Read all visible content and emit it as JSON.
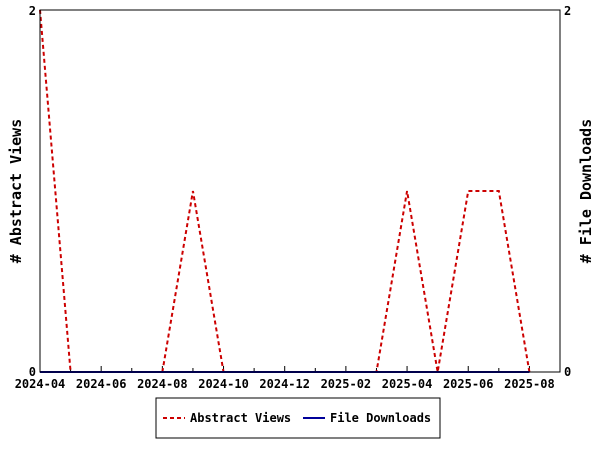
{
  "chart_data": {
    "type": "line",
    "left_axis_label": "# Abstract Views",
    "right_axis_label": "# File Downloads",
    "y_ticks": [
      "0",
      "2"
    ],
    "y_range": [
      0,
      2
    ],
    "x_range_months": [
      "2024-04",
      "2025-09"
    ],
    "x_tick_labels": [
      "2024-04",
      "2024-06",
      "2024-08",
      "2024-10",
      "2024-12",
      "2025-02",
      "2025-04",
      "2025-06",
      "2025-08"
    ],
    "months": [
      "2024-04",
      "2024-05",
      "2024-06",
      "2024-07",
      "2024-08",
      "2024-09",
      "2024-10",
      "2024-11",
      "2024-12",
      "2025-01",
      "2025-02",
      "2025-03",
      "2025-04",
      "2025-05",
      "2025-06",
      "2025-07",
      "2025-08"
    ],
    "series": [
      {
        "name": "Abstract Views",
        "color": "#cc0000",
        "style": "dashed",
        "values": [
          2,
          0,
          0,
          0,
          0,
          1,
          0,
          0,
          0,
          0,
          0,
          0,
          1,
          0,
          1,
          1,
          0
        ]
      },
      {
        "name": "File Downloads",
        "color": "#000099",
        "style": "solid",
        "values": [
          0,
          0,
          0,
          0,
          0,
          0,
          0,
          0,
          0,
          0,
          0,
          0,
          0,
          0,
          0,
          0,
          0
        ]
      }
    ],
    "legend_position": "bottom"
  }
}
